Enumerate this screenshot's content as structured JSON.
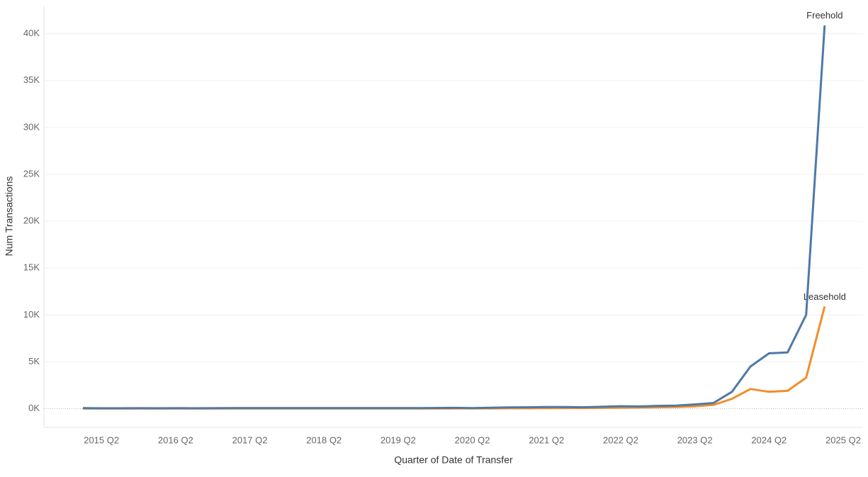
{
  "chart_data": {
    "type": "line",
    "x_label": "Quarter of Date of Transfer",
    "y_label": "Num Transactions",
    "categories": [
      null,
      "2015 Q2",
      null,
      null,
      null,
      "2016 Q2",
      null,
      null,
      null,
      "2017 Q2",
      null,
      null,
      null,
      "2018 Q2",
      null,
      null,
      null,
      "2019 Q2",
      null,
      null,
      null,
      "2020 Q2",
      null,
      null,
      null,
      "2021 Q2",
      null,
      null,
      null,
      "2022 Q2",
      null,
      null,
      null,
      "2023 Q2",
      null,
      null,
      null,
      "2024 Q2",
      null,
      null,
      null,
      "2025 Q2"
    ],
    "series": [
      {
        "name": "Leasehold",
        "color": "#f28e2b",
        "values": [
          10,
          10,
          10,
          10,
          10,
          10,
          10,
          10,
          10,
          10,
          10,
          10,
          10,
          10,
          10,
          10,
          10,
          10,
          10,
          10,
          20,
          20,
          30,
          40,
          40,
          50,
          60,
          60,
          80,
          100,
          120,
          150,
          180,
          250,
          400,
          1050,
          2100,
          1800,
          1900,
          3300,
          10900,
          null
        ]
      },
      {
        "name": "Freehold",
        "color": "#4e79a7",
        "values": [
          60,
          40,
          45,
          50,
          45,
          50,
          45,
          50,
          55,
          60,
          55,
          60,
          55,
          60,
          60,
          55,
          60,
          65,
          60,
          70,
          90,
          60,
          100,
          140,
          150,
          180,
          170,
          150,
          200,
          260,
          230,
          300,
          320,
          450,
          600,
          1800,
          4500,
          5900,
          6000,
          10000,
          40900,
          null
        ]
      }
    ],
    "ylim": [
      -2000,
      43000
    ],
    "yticks": [
      {
        "value": 0,
        "label": "0K"
      },
      {
        "value": 5000,
        "label": "5K"
      },
      {
        "value": 10000,
        "label": "10K"
      },
      {
        "value": 15000,
        "label": "15K"
      },
      {
        "value": 20000,
        "label": "20K"
      },
      {
        "value": 25000,
        "label": "25K"
      },
      {
        "value": 30000,
        "label": "30K"
      },
      {
        "value": 35000,
        "label": "35K"
      },
      {
        "value": 40000,
        "label": "40K"
      }
    ],
    "grid": true
  }
}
